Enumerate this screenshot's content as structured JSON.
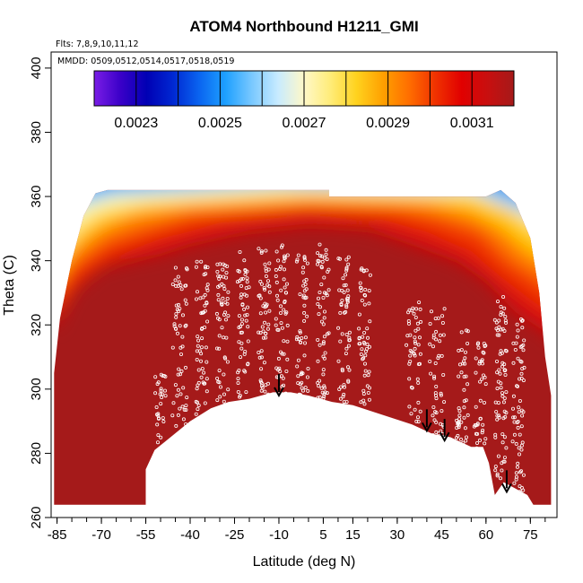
{
  "chart_data": {
    "type": "heatmap",
    "title": "ATOM4 Northbound H1211_GMI",
    "flights_label": "Flts: 7,8,9,10,11,12",
    "dates_label": "MMDD: 0509,0512,0514,0517,0518,0519",
    "xlabel": "Latitude (deg N)",
    "ylabel": "Theta (C)",
    "xlim": [
      -87,
      84
    ],
    "ylim": [
      260,
      405
    ],
    "x_ticks": [
      -85,
      -70,
      -55,
      -40,
      -25,
      -10,
      5,
      15,
      30,
      45,
      60,
      75
    ],
    "x_tick_labels": [
      "-85",
      "-70",
      "-55",
      "-40",
      "-25",
      "-10",
      "5",
      "15",
      "30",
      "45",
      "60",
      "75"
    ],
    "y_ticks": [
      260,
      280,
      300,
      320,
      340,
      360,
      380,
      400
    ],
    "y_tick_labels": [
      "260",
      "280",
      "300",
      "320",
      "340",
      "360",
      "380",
      "400"
    ],
    "colorbar": {
      "min": 0.0022,
      "max": 0.0032,
      "ticks": [
        0.0023,
        0.0025,
        0.0027,
        0.0029,
        0.0031
      ],
      "tick_labels": [
        "0.0023",
        "0.0025",
        "0.0027",
        "0.0029",
        "0.0031"
      ],
      "colors": [
        "#7a1de6",
        "#3a00c8",
        "#0000b4",
        "#0028d2",
        "#0a64f0",
        "#1ea0ff",
        "#78c8ff",
        "#c8ebff",
        "#fff8c8",
        "#ffec78",
        "#ffd21e",
        "#ffa000",
        "#ff6e00",
        "#f03200",
        "#e10000",
        "#c80f0f",
        "#a51a1a"
      ]
    },
    "field_surface_theta_by_lat": [
      [
        -86,
        264
      ],
      [
        -55,
        264
      ],
      [
        -55,
        275
      ],
      [
        -52,
        281
      ],
      [
        -48,
        284
      ],
      [
        -40,
        290
      ],
      [
        -33,
        294
      ],
      [
        -27,
        296
      ],
      [
        -20,
        297
      ],
      [
        -12,
        299
      ],
      [
        -6,
        299
      ],
      [
        0,
        298
      ],
      [
        8,
        296
      ],
      [
        15,
        295
      ],
      [
        25,
        292
      ],
      [
        35,
        289
      ],
      [
        42,
        286
      ],
      [
        48,
        285
      ],
      [
        55,
        282
      ],
      [
        59,
        282
      ],
      [
        61,
        277
      ],
      [
        63,
        267
      ],
      [
        66,
        271
      ],
      [
        70,
        269
      ],
      [
        74,
        267
      ],
      [
        76,
        264
      ],
      [
        82,
        264
      ]
    ],
    "field_top_theta_by_lat": [
      [
        -86,
        305
      ],
      [
        -84,
        322
      ],
      [
        -80,
        340
      ],
      [
        -76,
        354
      ],
      [
        -72,
        361
      ],
      [
        -68,
        362
      ],
      [
        7,
        362
      ],
      [
        7,
        360
      ],
      [
        60,
        360
      ],
      [
        65,
        362
      ],
      [
        70,
        358
      ],
      [
        75,
        347
      ],
      [
        78,
        330
      ],
      [
        80,
        310
      ],
      [
        82,
        298
      ]
    ],
    "flight_tracks": [
      {
        "lat0": -52,
        "lat1": -48,
        "theta_bottom": 282,
        "theta_top": 306
      },
      {
        "lat0": -46,
        "lat1": -41,
        "theta_bottom": 288,
        "theta_top": 338
      },
      {
        "lat0": -38,
        "lat1": -34,
        "theta_bottom": 292,
        "theta_top": 340
      },
      {
        "lat0": -31,
        "lat1": -27,
        "theta_bottom": 294,
        "theta_top": 341
      },
      {
        "lat0": -24,
        "lat1": -20,
        "theta_bottom": 296,
        "theta_top": 343
      },
      {
        "lat0": -17,
        "lat1": -13,
        "theta_bottom": 297,
        "theta_top": 344
      },
      {
        "lat0": -11,
        "lat1": -7,
        "theta_bottom": 298,
        "theta_top": 345
      },
      {
        "lat0": -4,
        "lat1": 0,
        "theta_bottom": 298,
        "theta_top": 343
      },
      {
        "lat0": 3,
        "lat1": 7,
        "theta_bottom": 297,
        "theta_top": 346
      },
      {
        "lat0": 10,
        "lat1": 14,
        "theta_bottom": 296,
        "theta_top": 343
      },
      {
        "lat0": 17,
        "lat1": 21,
        "theta_bottom": 294,
        "theta_top": 338
      },
      {
        "lat0": 33,
        "lat1": 38,
        "theta_bottom": 287,
        "theta_top": 329
      },
      {
        "lat0": 41,
        "lat1": 46,
        "theta_bottom": 285,
        "theta_top": 325
      },
      {
        "lat0": 50,
        "lat1": 54,
        "theta_bottom": 282,
        "theta_top": 319
      },
      {
        "lat0": 56,
        "lat1": 60,
        "theta_bottom": 278,
        "theta_top": 315
      },
      {
        "lat0": 63,
        "lat1": 67,
        "theta_bottom": 268,
        "theta_top": 330
      },
      {
        "lat0": 69,
        "lat1": 73,
        "theta_bottom": 268,
        "theta_top": 322
      }
    ],
    "arrow_markers": [
      {
        "lat": -10,
        "theta": 298
      },
      {
        "lat": 40,
        "theta": 287
      },
      {
        "lat": 46,
        "theta": 284
      },
      {
        "lat": 67,
        "theta": 268
      }
    ]
  }
}
